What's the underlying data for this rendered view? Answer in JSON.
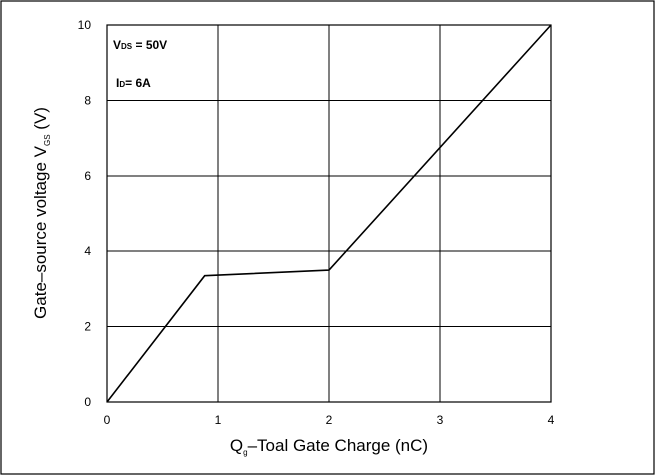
{
  "chart_data": {
    "type": "line",
    "title": "",
    "xlabel_main": "Q",
    "xlabel_sub": "g",
    "xlabel_rest": "–Toal Gate Charge  (nC)",
    "ylabel_main": "Gate–source voltage V",
    "ylabel_sub": "GS",
    "ylabel_unit": " (V)",
    "xlim": [
      0,
      4
    ],
    "ylim": [
      0,
      10
    ],
    "x_ticks": [
      "0",
      "1",
      "2",
      "3",
      "4"
    ],
    "y_ticks": [
      "0",
      "2",
      "4",
      "6",
      "8",
      "10"
    ],
    "grid": true,
    "series": [
      {
        "x": [
          0,
          0.88,
          2.0,
          4.0
        ],
        "y": [
          0,
          3.35,
          3.5,
          10.0
        ]
      }
    ],
    "annotations": [
      {
        "main": "V",
        "sub": "DS",
        "rest": " = 50V"
      },
      {
        "main": "I",
        "sub": "D",
        "rest": "= 6A"
      }
    ]
  }
}
